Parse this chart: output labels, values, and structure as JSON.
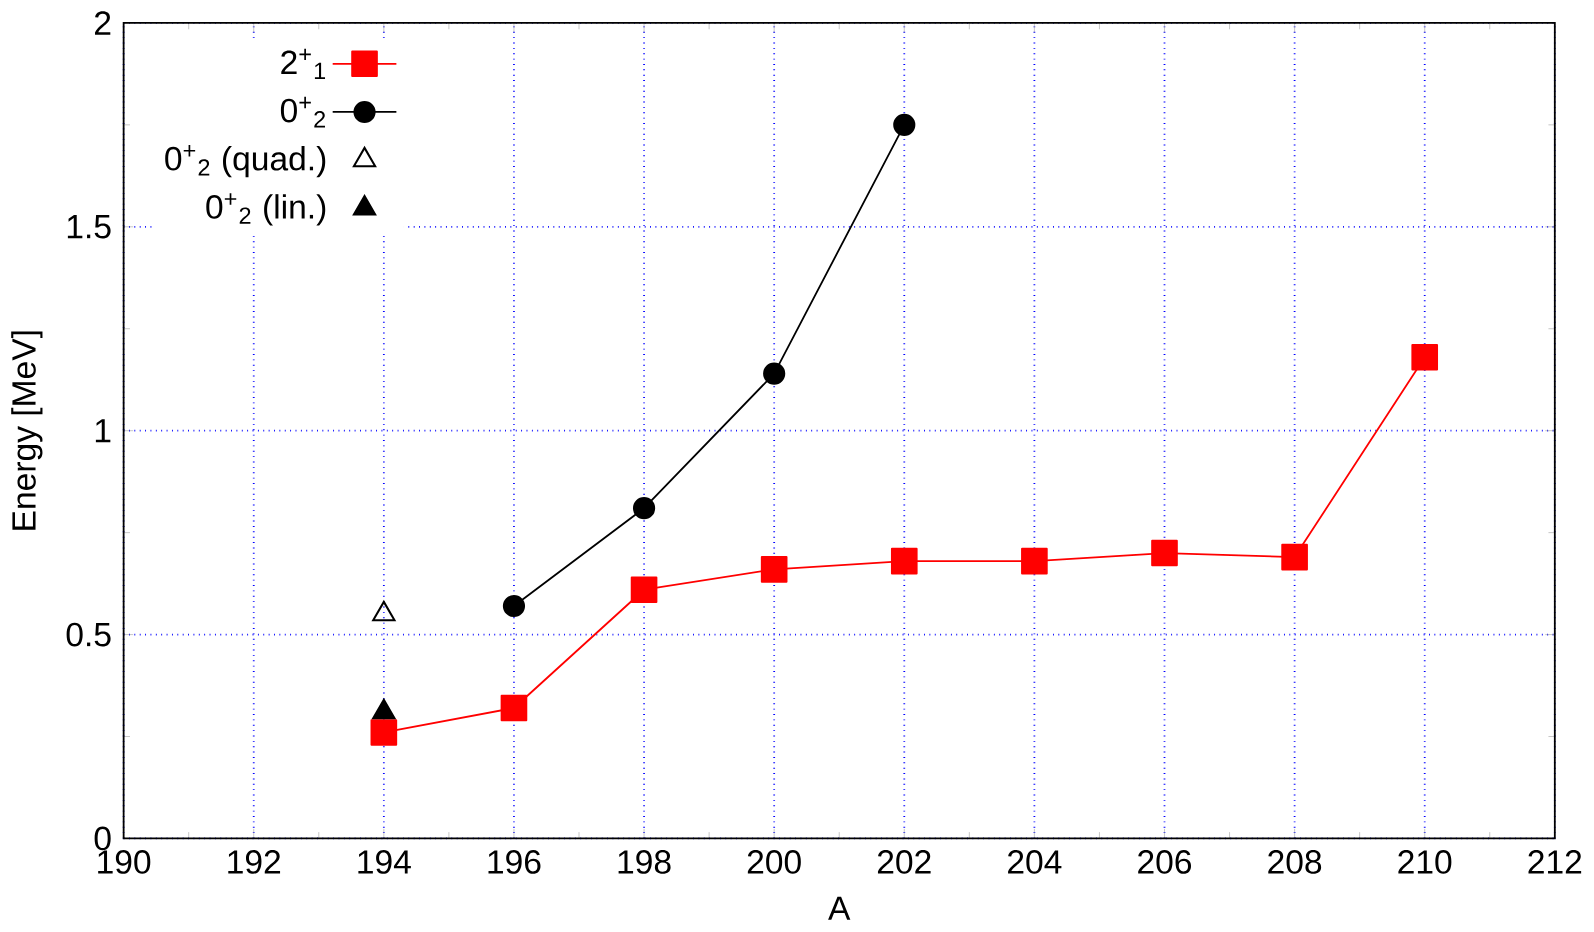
{
  "chart_data": {
    "type": "line",
    "xlabel": "A",
    "ylabel": "Energy [MeV]",
    "xlim": [
      190,
      212
    ],
    "xticks": [
      190,
      192,
      194,
      196,
      198,
      200,
      202,
      204,
      206,
      208,
      210,
      212
    ],
    "ylim": [
      0,
      2
    ],
    "yticks": [
      0,
      0.5,
      1,
      1.5,
      2
    ],
    "grid": true,
    "legend": "top left",
    "series": [
      {
        "name": "2$^{+}$$_{1}$",
        "color": "#ff0000",
        "marker": "square",
        "x": [
          194,
          196,
          198,
          200,
          202,
          204,
          206,
          208,
          210
        ],
        "values": [
          0.26,
          0.32,
          0.61,
          0.66,
          0.68,
          0.68,
          0.7,
          0.69,
          1.18
        ]
      },
      {
        "name": "0$^{+}$$_{2}$",
        "color": "#000000",
        "marker": "circle",
        "x": [
          196,
          198,
          200,
          202
        ],
        "values": [
          0.57,
          0.81,
          1.14,
          1.75
        ]
      },
      {
        "name": "0$^{+}$$_{2}$ (quad.)",
        "color": "#000000",
        "type": "scatter",
        "marker": "triangle-open",
        "x": [
          194
        ],
        "values": [
          0.55
        ]
      },
      {
        "name": "0$^{+}$$_{2}$ (lin.)",
        "color": "#000000",
        "type": "scatter",
        "marker": "triangle",
        "x": [
          194
        ],
        "values": [
          0.31
        ]
      }
    ]
  }
}
